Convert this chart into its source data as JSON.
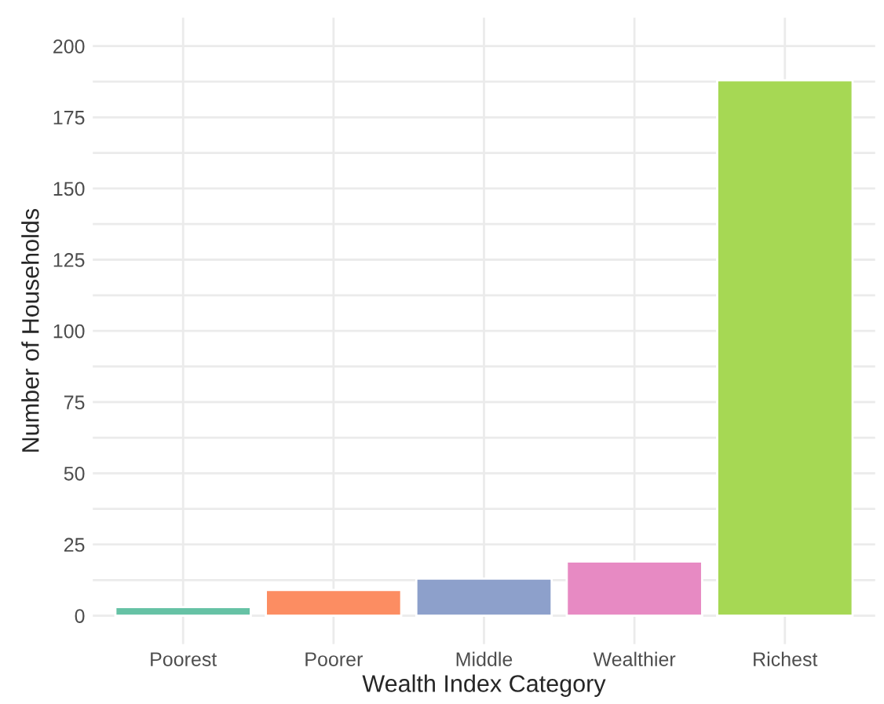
{
  "chart_data": {
    "type": "bar",
    "xlabel": "Wealth Index Category",
    "ylabel": "Number of Households",
    "categories": [
      "Poorest",
      "Poorer",
      "Middle",
      "Wealthier",
      "Richest"
    ],
    "values": [
      3,
      9,
      13,
      19,
      188
    ],
    "colors": [
      "#66c2a5",
      "#fc8d62",
      "#8da0cb",
      "#e78ac3",
      "#a6d854"
    ],
    "ylim": [
      -10,
      210
    ],
    "yticks": [
      0,
      {
        "value": 12.5,
        "label": null
      },
      25,
      {
        "value": 37.5,
        "label": null
      },
      50,
      {
        "value": 62.5,
        "label": null
      },
      75,
      {
        "value": 87.5,
        "label": null
      },
      100,
      {
        "value": 112.5,
        "label": null
      },
      125,
      {
        "value": 137.5,
        "label": null
      },
      150,
      {
        "value": 162.5,
        "label": null
      },
      175,
      {
        "value": 187.5,
        "label": null
      },
      200
    ],
    "grid": true,
    "legend": false
  }
}
